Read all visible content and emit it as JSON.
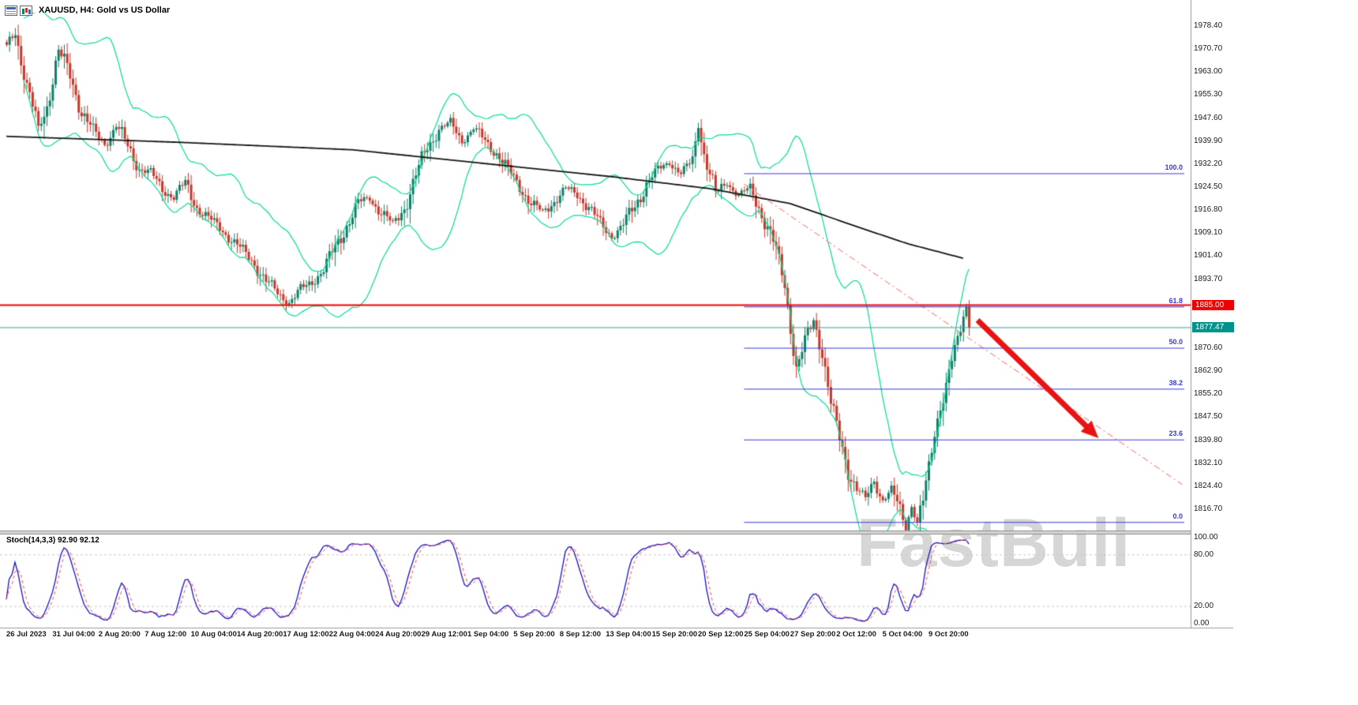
{
  "title": {
    "symbol_line": "XAUUSD, H4: Gold vs US Dollar"
  },
  "watermark": "FastBull",
  "indicator_label": "Stoch(14,3,3) 92.90 92.12",
  "price_axis": {
    "ticks": [
      "1978.40",
      "1970.70",
      "1963.00",
      "1955.30",
      "1947.60",
      "1939.90",
      "1932.20",
      "1924.50",
      "1916.80",
      "1909.10",
      "1901.40",
      "1893.70",
      "1870.60",
      "1862.90",
      "1855.20",
      "1847.50",
      "1839.80",
      "1832.10",
      "1824.40",
      "1816.70"
    ],
    "badge_red": "1885.00",
    "badge_teal": "1877.47"
  },
  "stoch_axis": {
    "ticks": [
      {
        "label": "100.00",
        "value": 100
      },
      {
        "label": "80.00",
        "value": 80
      },
      {
        "label": "20.00",
        "value": 20
      },
      {
        "label": "0.00",
        "value": 0
      }
    ]
  },
  "time_axis": {
    "labels": [
      "26 Jul 2023",
      "31 Jul 04:00",
      "2 Aug 20:00",
      "7 Aug 12:00",
      "10 Aug 04:00",
      "14 Aug 20:00",
      "17 Aug 12:00",
      "22 Aug 04:00",
      "24 Aug 20:00",
      "29 Aug 12:00",
      "1 Sep 04:00",
      "5 Sep 20:00",
      "8 Sep 12:00",
      "13 Sep 04:00",
      "15 Sep 20:00",
      "20 Sep 12:00",
      "25 Sep 04:00",
      "27 Sep 20:00",
      "2 Oct 12:00",
      "5 Oct 04:00",
      "9 Oct 20:00"
    ]
  },
  "chart_data": {
    "type": "candlestick",
    "symbol": "XAUUSD",
    "timeframe": "H4",
    "name": "Gold vs US Dollar",
    "bar_count": 335,
    "last_price": 1877.47,
    "price_range_top": 1978.4,
    "price_step": 7.7,
    "close_waypoints": [
      [
        0,
        1971
      ],
      [
        3,
        1977
      ],
      [
        7,
        1958
      ],
      [
        11,
        1944
      ],
      [
        14,
        1952
      ],
      [
        18,
        1970
      ],
      [
        22,
        1962
      ],
      [
        26,
        1950
      ],
      [
        30,
        1943
      ],
      [
        34,
        1939
      ],
      [
        38,
        1945
      ],
      [
        42,
        1938
      ],
      [
        46,
        1931
      ],
      [
        50,
        1929
      ],
      [
        54,
        1924
      ],
      [
        58,
        1921
      ],
      [
        62,
        1926
      ],
      [
        66,
        1918
      ],
      [
        70,
        1914
      ],
      [
        74,
        1911
      ],
      [
        78,
        1907
      ],
      [
        82,
        1903
      ],
      [
        86,
        1899
      ],
      [
        90,
        1893
      ],
      [
        94,
        1889
      ],
      [
        98,
        1886
      ],
      [
        102,
        1890
      ],
      [
        106,
        1893
      ],
      [
        110,
        1897
      ],
      [
        114,
        1904
      ],
      [
        118,
        1912
      ],
      [
        122,
        1919
      ],
      [
        126,
        1921
      ],
      [
        130,
        1916
      ],
      [
        134,
        1912
      ],
      [
        138,
        1918
      ],
      [
        142,
        1928
      ],
      [
        146,
        1938
      ],
      [
        150,
        1944
      ],
      [
        154,
        1946
      ],
      [
        158,
        1940
      ],
      [
        162,
        1944
      ],
      [
        166,
        1940
      ],
      [
        170,
        1936
      ],
      [
        174,
        1930
      ],
      [
        178,
        1925
      ],
      [
        182,
        1919
      ],
      [
        186,
        1916
      ],
      [
        190,
        1920
      ],
      [
        194,
        1924
      ],
      [
        198,
        1922
      ],
      [
        202,
        1918
      ],
      [
        206,
        1912
      ],
      [
        210,
        1908
      ],
      [
        214,
        1912
      ],
      [
        218,
        1918
      ],
      [
        222,
        1926
      ],
      [
        226,
        1930
      ],
      [
        230,
        1933
      ],
      [
        234,
        1929
      ],
      [
        238,
        1933
      ],
      [
        240,
        1946
      ],
      [
        242,
        1936
      ],
      [
        246,
        1922
      ],
      [
        250,
        1926
      ],
      [
        254,
        1922
      ],
      [
        258,
        1924
      ],
      [
        262,
        1916
      ],
      [
        266,
        1906
      ],
      [
        270,
        1892
      ],
      [
        274,
        1864
      ],
      [
        277,
        1872
      ],
      [
        280,
        1880
      ],
      [
        283,
        1870
      ],
      [
        286,
        1852
      ],
      [
        289,
        1840
      ],
      [
        292,
        1830
      ],
      [
        295,
        1824
      ],
      [
        298,
        1820
      ],
      [
        301,
        1826
      ],
      [
        304,
        1820
      ],
      [
        307,
        1823
      ],
      [
        310,
        1816
      ],
      [
        312,
        1811
      ],
      [
        314,
        1818
      ],
      [
        316,
        1812
      ],
      [
        318,
        1819
      ],
      [
        320,
        1830
      ],
      [
        322,
        1843
      ],
      [
        324,
        1852
      ],
      [
        326,
        1858
      ],
      [
        328,
        1866
      ],
      [
        330,
        1872
      ],
      [
        332,
        1882
      ],
      [
        333,
        1884.5
      ],
      [
        334,
        1877.47
      ]
    ],
    "moving_average_waypoints": [
      [
        0,
        1941.5
      ],
      [
        60,
        1939.5
      ],
      [
        120,
        1937
      ],
      [
        170,
        1932
      ],
      [
        210,
        1928
      ],
      [
        244,
        1924
      ],
      [
        272,
        1919
      ],
      [
        299,
        1910
      ],
      [
        313,
        1905.5
      ],
      [
        332,
        1900.7
      ]
    ],
    "bollinger": {
      "period": 20,
      "deviation": 2
    },
    "stochastic": {
      "k_period": 14,
      "d_period": 3,
      "slowing": 3,
      "last_k": 92.9,
      "last_d": 92.12
    },
    "horizontal_lines": [
      {
        "price": 1885.0,
        "color": "#f00000",
        "width": 2,
        "role": "resistance"
      },
      {
        "price": 1877.47,
        "color": "#2aa89f",
        "width": 1.2,
        "role": "current-price"
      }
    ],
    "fibonacci": {
      "start_index": 256,
      "levels": [
        {
          "label": "100.0",
          "price": 1929.0
        },
        {
          "label": "61.8",
          "price": 1884.4
        },
        {
          "label": "50.0",
          "price": 1870.6
        },
        {
          "label": "38.2",
          "price": 1856.9
        },
        {
          "label": "23.6",
          "price": 1839.9
        },
        {
          "label": "0.0",
          "price": 1812.3
        }
      ]
    },
    "trendline": {
      "start_index": 256,
      "start_price": 1925.5,
      "end_index": 408,
      "end_price": 1825
    },
    "arrow": {
      "start_index": 337,
      "start_price": 1880,
      "end_index": 379,
      "end_price": 1840.5
    }
  },
  "colors": {
    "up": "#107f68",
    "down": "#c63728",
    "bollinger": "#00dd96",
    "ma": "#151515",
    "fib": "#3a3ad6",
    "stoch_main": "#1414c8",
    "stoch_signal": "#ff4a4a",
    "badge_red_bg": "#f00000",
    "badge_teal_bg": "#00938c",
    "trendline": "#ff8a8a",
    "arrow": "#e81414"
  }
}
